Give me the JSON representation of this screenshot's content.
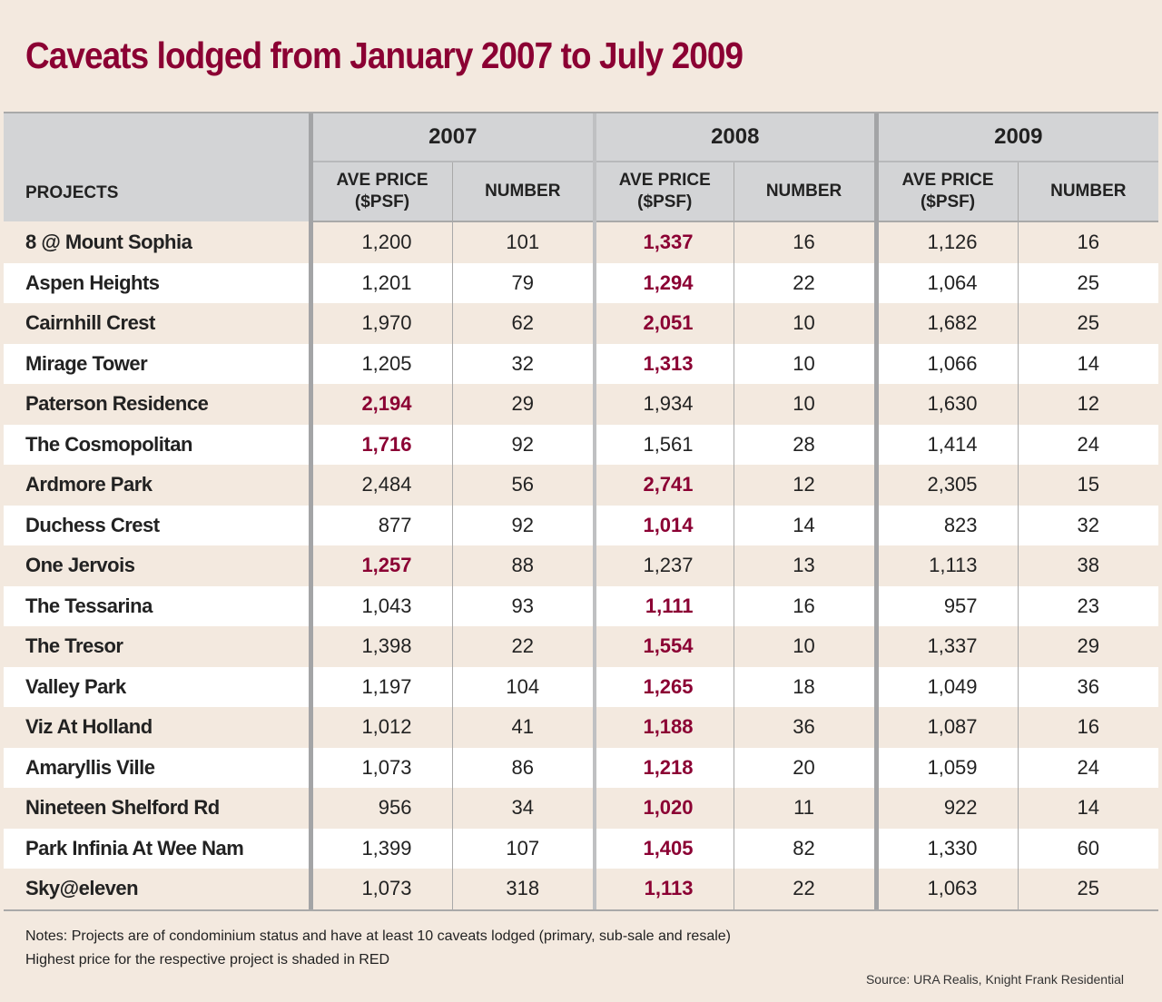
{
  "title": "Caveats lodged from January 2007 to July 2009",
  "table": {
    "projects_header": "PROJECTS",
    "years": [
      "2007",
      "2008",
      "2009"
    ],
    "price_header": "AVE PRICE",
    "price_unit": "($PSF)",
    "number_header": "NUMBER",
    "highlight_color": "#8b0033",
    "rows": [
      {
        "project": "8 @ Mount Sophia",
        "p2007": "1,200",
        "n2007": "101",
        "p2008": "1,337",
        "n2008": "16",
        "p2009": "1,126",
        "n2009": "16",
        "highest": "2008"
      },
      {
        "project": "Aspen Heights",
        "p2007": "1,201",
        "n2007": "79",
        "p2008": "1,294",
        "n2008": "22",
        "p2009": "1,064",
        "n2009": "25",
        "highest": "2008"
      },
      {
        "project": "Cairnhill Crest",
        "p2007": "1,970",
        "n2007": "62",
        "p2008": "2,051",
        "n2008": "10",
        "p2009": "1,682",
        "n2009": "25",
        "highest": "2008"
      },
      {
        "project": "Mirage Tower",
        "p2007": "1,205",
        "n2007": "32",
        "p2008": "1,313",
        "n2008": "10",
        "p2009": "1,066",
        "n2009": "14",
        "highest": "2008"
      },
      {
        "project": "Paterson Residence",
        "p2007": "2,194",
        "n2007": "29",
        "p2008": "1,934",
        "n2008": "10",
        "p2009": "1,630",
        "n2009": "12",
        "highest": "2007"
      },
      {
        "project": "The Cosmopolitan",
        "p2007": "1,716",
        "n2007": "92",
        "p2008": "1,561",
        "n2008": "28",
        "p2009": "1,414",
        "n2009": "24",
        "highest": "2007"
      },
      {
        "project": "Ardmore Park",
        "p2007": "2,484",
        "n2007": "56",
        "p2008": "2,741",
        "n2008": "12",
        "p2009": "2,305",
        "n2009": "15",
        "highest": "2008"
      },
      {
        "project": "Duchess Crest",
        "p2007": "877",
        "n2007": "92",
        "p2008": "1,014",
        "n2008": "14",
        "p2009": "823",
        "n2009": "32",
        "highest": "2008"
      },
      {
        "project": "One Jervois",
        "p2007": "1,257",
        "n2007": "88",
        "p2008": "1,237",
        "n2008": "13",
        "p2009": "1,113",
        "n2009": "38",
        "highest": "2007"
      },
      {
        "project": "The Tessarina",
        "p2007": "1,043",
        "n2007": "93",
        "p2008": "1,111",
        "n2008": "16",
        "p2009": "957",
        "n2009": "23",
        "highest": "2008"
      },
      {
        "project": "The Tresor",
        "p2007": "1,398",
        "n2007": "22",
        "p2008": "1,554",
        "n2008": "10",
        "p2009": "1,337",
        "n2009": "29",
        "highest": "2008"
      },
      {
        "project": "Valley Park",
        "p2007": "1,197",
        "n2007": "104",
        "p2008": "1,265",
        "n2008": "18",
        "p2009": "1,049",
        "n2009": "36",
        "highest": "2008"
      },
      {
        "project": "Viz At Holland",
        "p2007": "1,012",
        "n2007": "41",
        "p2008": "1,188",
        "n2008": "36",
        "p2009": "1,087",
        "n2009": "16",
        "highest": "2008"
      },
      {
        "project": "Amaryllis Ville",
        "p2007": "1,073",
        "n2007": "86",
        "p2008": "1,218",
        "n2008": "20",
        "p2009": "1,059",
        "n2009": "24",
        "highest": "2008"
      },
      {
        "project": "Nineteen Shelford Rd",
        "p2007": "956",
        "n2007": "34",
        "p2008": "1,020",
        "n2008": "11",
        "p2009": "922",
        "n2009": "14",
        "highest": "2008"
      },
      {
        "project": "Park Infinia At Wee Nam",
        "p2007": "1,399",
        "n2007": "107",
        "p2008": "1,405",
        "n2008": "82",
        "p2009": "1,330",
        "n2009": "60",
        "highest": "2008"
      },
      {
        "project": "Sky@eleven",
        "p2007": "1,073",
        "n2007": "318",
        "p2008": "1,113",
        "n2008": "22",
        "p2009": "1,063",
        "n2009": "25",
        "highest": "2008"
      }
    ]
  },
  "notes": [
    "Notes: Projects are of condominium status and have at least 10 caveats lodged (primary, sub-sale and resale)",
    "Highest price for the respective project is shaded in RED"
  ],
  "source": "Source: URA Realis, Knight Frank Residential"
}
